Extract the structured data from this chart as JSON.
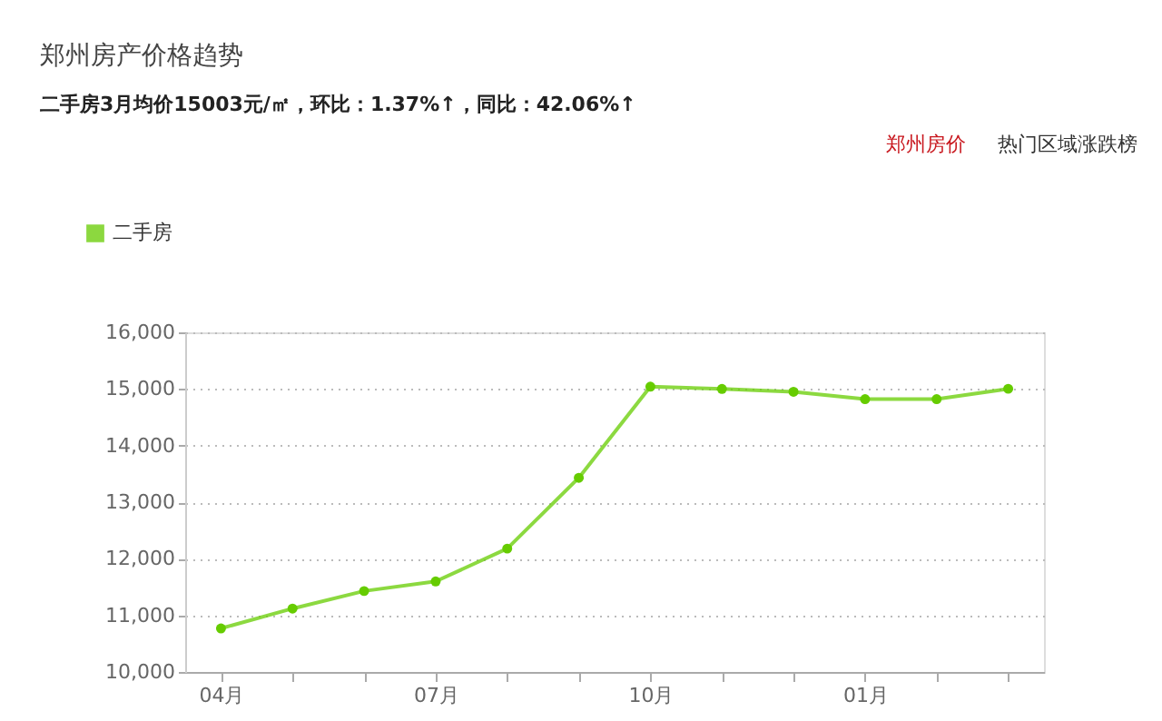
{
  "chart_data": {
    "type": "line",
    "title": "郑州房产价格趋势",
    "subtitle": "二手房3月均价15003元/㎡，环比：1.37%↑，同比：42.06%↑",
    "categories": [
      "04月",
      null,
      null,
      "07月",
      null,
      null,
      "10月",
      null,
      null,
      "01月",
      null,
      null
    ],
    "series": [
      {
        "name": "二手房",
        "color": "#66cc00",
        "values": [
          10770,
          11120,
          11430,
          11600,
          12180,
          13430,
          15040,
          15000,
          14950,
          14820,
          14820,
          15003
        ]
      }
    ],
    "ylim": [
      10000,
      16000
    ],
    "yticks": [
      {
        "value": 10000,
        "label": "10,000"
      },
      {
        "value": 11000,
        "label": "11,000"
      },
      {
        "value": 12000,
        "label": "12,000"
      },
      {
        "value": 13000,
        "label": "13,000"
      },
      {
        "value": 14000,
        "label": "14,000"
      },
      {
        "value": 15000,
        "label": "15,000"
      },
      {
        "value": 16000,
        "label": "16,000"
      }
    ],
    "grid": "y",
    "legend": "top left",
    "marker": "circle",
    "line_style": "solid",
    "annotations": [
      "郑州房价",
      "热门区域涨跌榜"
    ]
  }
}
